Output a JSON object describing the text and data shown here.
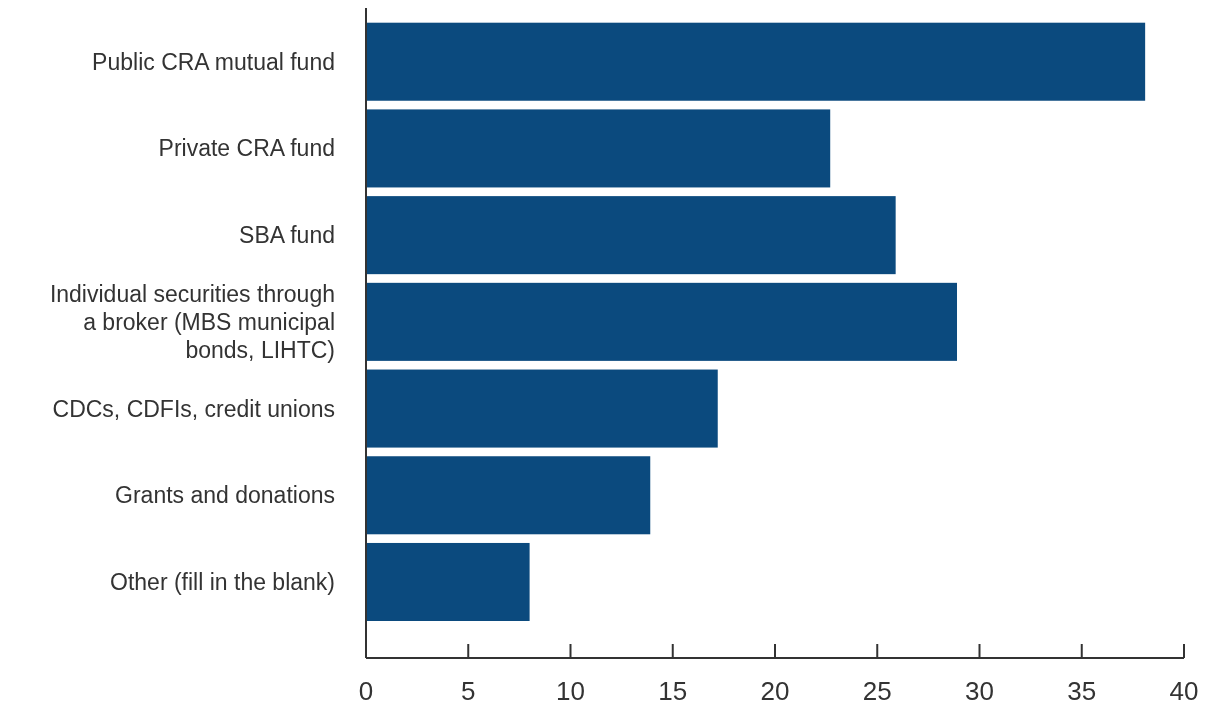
{
  "chart_data": {
    "type": "bar",
    "orientation": "horizontal",
    "categories": [
      "Public CRA mutual fund",
      "Private CRA fund",
      "SBA fund",
      "Individual securities through a broker (MBS municipal bonds, LIHTC)",
      "CDCs, CDFIs, credit unions",
      "Grants and donations",
      "Other (fill in the blank)"
    ],
    "values": [
      38.1,
      22.7,
      25.9,
      28.9,
      17.2,
      13.9,
      8.0
    ],
    "color": "#0b4a7e",
    "xlim": [
      0,
      40
    ],
    "xticks": [
      0,
      5,
      10,
      15,
      20,
      25,
      30,
      35,
      40
    ],
    "grid": false
  }
}
